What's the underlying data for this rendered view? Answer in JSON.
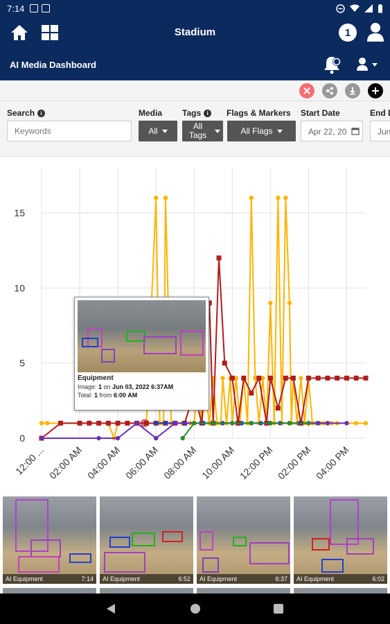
{
  "status_bar": {
    "time": "7:14"
  },
  "app_bar": {
    "title": "Stadium",
    "subtitle": "AI Media Dashboard",
    "notification_count": "1",
    "icons": [
      "home-icon",
      "dashboard-grid-icon",
      "user-icon",
      "bell-icon",
      "account-menu-icon"
    ]
  },
  "toolbar": {
    "icons": [
      "close-icon",
      "share-icon",
      "download-icon",
      "add-icon"
    ]
  },
  "filters": {
    "search_label": "Search",
    "search_placeholder": "Keywords",
    "media_label": "Media",
    "media_value": "All",
    "tags_label": "Tags",
    "tags_value": "All Tags",
    "flags_label": "Flags & Markers",
    "flags_value": "All Flags",
    "start_label": "Start Date",
    "start_value": "Apr 22, 20",
    "end_label": "End D",
    "end_value": "Jun"
  },
  "chart_data": {
    "type": "line",
    "x_tick_labels": [
      "12:00 ...",
      "02:00 AM",
      "04:00 AM",
      "06:00 AM",
      "08:00 AM",
      "10:00 AM",
      "12:00 PM",
      "02:00 PM",
      "04:00 PM"
    ],
    "y_tick_labels": [
      "0",
      "5",
      "10",
      "15"
    ],
    "ylim": [
      0,
      18
    ],
    "grid": true,
    "series": [
      {
        "color": "#ffb400",
        "x": [
          0,
          0.3,
          1.0,
          2.0,
          2.5,
          3.0,
          3.5,
          3.8,
          4.0,
          4.5,
          5.0,
          5.5,
          6.0,
          6.2,
          6.4,
          6.5,
          6.8,
          7.0,
          7.4,
          7.8,
          8.0,
          8.2,
          8.4,
          8.6,
          8.8,
          9.0,
          9.2,
          9.4,
          9.5,
          9.7,
          9.9,
          10.0,
          10.2,
          10.4,
          10.6,
          10.8,
          11.0,
          11.2,
          11.4,
          11.6,
          11.8,
          12.0,
          12.2,
          12.4,
          12.6,
          12.8,
          13.0,
          13.1,
          13.2,
          13.4,
          13.6,
          13.8,
          14.0,
          14.2,
          14.4,
          14.6,
          14.8,
          15.0,
          15.2,
          15.5,
          16.0,
          16.5,
          17.0
        ],
        "y": [
          1,
          1,
          1,
          1,
          1,
          1,
          1,
          0,
          1,
          1,
          1,
          1,
          16,
          1,
          1,
          16,
          1,
          1,
          1,
          1,
          1,
          4,
          1,
          3,
          1,
          4,
          1,
          1,
          4,
          1,
          4,
          1,
          4,
          1,
          4,
          1,
          16,
          4,
          1,
          4,
          1,
          9,
          1,
          16,
          1,
          16,
          9,
          1,
          4,
          1,
          4,
          1,
          4,
          1,
          1,
          1,
          1,
          1,
          1,
          1,
          1,
          1,
          1
        ]
      },
      {
        "color": "#b01c1c",
        "x": [
          0,
          1.0,
          2.0,
          2.5,
          3.0,
          3.5,
          4.0,
          4.5,
          5.0,
          5.5,
          6.0,
          6.5,
          7.0,
          7.5,
          8.0,
          8.4,
          8.8,
          9.0,
          9.3,
          9.6,
          10.0,
          10.3,
          10.6,
          11.0,
          11.4,
          11.8,
          12.0,
          12.4,
          12.8,
          13.2,
          13.6,
          14.0,
          14.5,
          15.0,
          15.5,
          16.0,
          16.5,
          17.0
        ],
        "y": [
          0,
          1,
          1,
          1,
          1,
          1,
          1,
          1,
          1,
          1,
          1,
          1,
          1,
          1,
          3,
          1,
          9,
          1,
          12,
          5,
          4,
          1,
          4,
          3,
          4,
          1,
          4,
          2,
          4,
          4,
          1,
          4,
          4,
          4,
          4,
          4,
          4,
          4
        ]
      },
      {
        "color": "#1f3fcc",
        "x": [
          6.0,
          6.5,
          7.0,
          7.5,
          8.0,
          8.5,
          9.0,
          9.5,
          10.0,
          10.5,
          11.0,
          11.5,
          12.0,
          12.5,
          13.0,
          13.5,
          14.0,
          14.5,
          15.0
        ],
        "y": [
          1,
          1,
          1,
          1,
          1,
          1,
          1,
          1,
          1,
          1,
          1,
          1,
          1,
          1,
          1,
          1,
          1,
          1,
          1
        ]
      },
      {
        "color": "#6a2fb8",
        "x": [
          0,
          3.0,
          4.0,
          5.0,
          6.0,
          7.0,
          8.0,
          9.0,
          10.0,
          11.0,
          12.0,
          13.0,
          14.0,
          15.0,
          16.0
        ],
        "y": [
          0,
          0,
          0,
          1,
          0,
          1,
          1,
          1,
          1,
          1,
          1,
          1,
          1,
          1,
          1
        ]
      },
      {
        "color": "#2a8a2a",
        "x": [
          7.4,
          8.0,
          9.0,
          10.0,
          11.0,
          12.0,
          13.0,
          14.0
        ],
        "y": [
          0,
          1,
          1,
          1,
          1,
          1,
          1,
          1
        ]
      }
    ]
  },
  "tooltip": {
    "title": "Equipment",
    "line1_prefix": "Image: ",
    "line1_count": "1",
    "line1_mid": " on ",
    "line1_date": "Jun 03, 2022 6:37AM",
    "line2_prefix": "Total: ",
    "line2_count": "1",
    "line2_mid": " from ",
    "line2_time": "6:00 AM"
  },
  "thumbnails": [
    {
      "label": "AI Equipment",
      "time": "7:14"
    },
    {
      "label": "AI Equipment",
      "time": "6:52"
    },
    {
      "label": "AI Equipment",
      "time": "6:37"
    },
    {
      "label": "AI Equipment",
      "time": "6:02"
    }
  ]
}
